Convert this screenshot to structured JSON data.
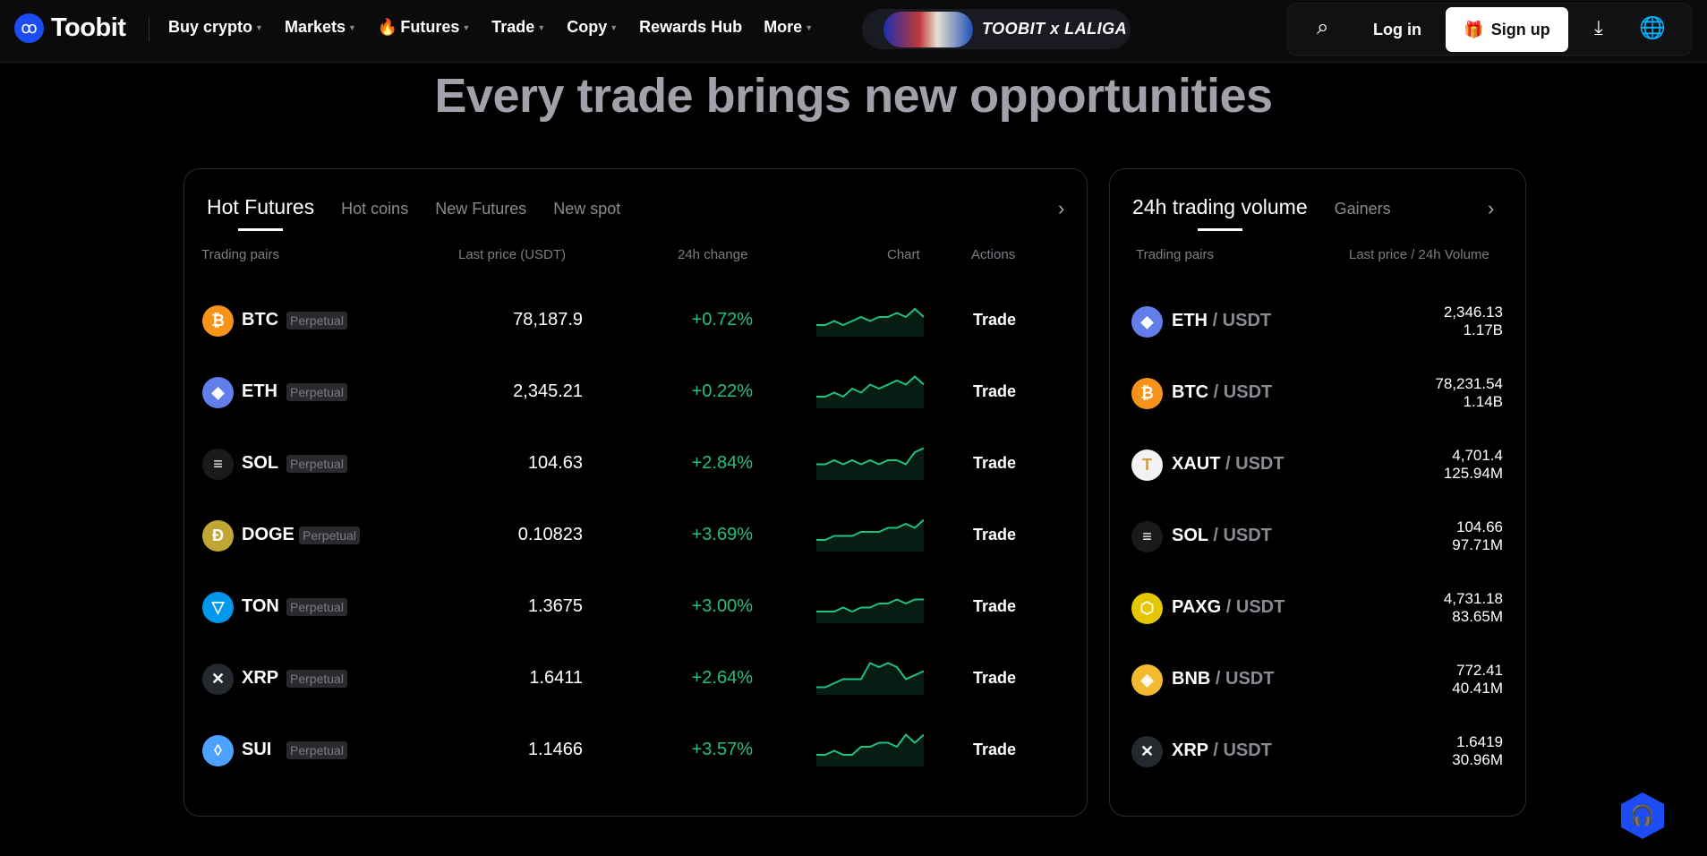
{
  "nav": {
    "brand": "Toobit",
    "menu": [
      {
        "label": "Buy crypto",
        "caret": true
      },
      {
        "label": "Markets",
        "caret": true
      },
      {
        "label": "Futures",
        "caret": true,
        "icon": "fire-icon"
      },
      {
        "label": "Trade",
        "caret": true
      },
      {
        "label": "Copy",
        "caret": true
      },
      {
        "label": "Rewards Hub",
        "caret": false
      },
      {
        "label": "More",
        "caret": true
      }
    ],
    "promo": "TOOBIT x LALIGA",
    "login": "Log in",
    "signup": "Sign up"
  },
  "headline": "Every trade brings new opportunities",
  "colors": {
    "accent": "#1d4cf5",
    "positive": "#20c080"
  },
  "hot": {
    "tabs": [
      "Hot Futures",
      "Hot coins",
      "New Futures",
      "New spot"
    ],
    "active_tab": "Hot Futures",
    "headers": {
      "pair": "Trading pairs",
      "price": "Last price  (USDT)",
      "change": "24h change",
      "chart": "Chart",
      "actions": "Actions"
    },
    "rows": [
      {
        "symbol": "BTC",
        "tag": "Perpetual",
        "price": "78,187.9",
        "change": "+0.72%",
        "action": "Trade",
        "color": "#f7931a",
        "glyph": "₿",
        "spark": [
          2,
          2,
          3,
          2,
          3,
          4,
          3,
          4,
          4,
          5,
          4,
          6,
          4
        ]
      },
      {
        "symbol": "ETH",
        "tag": "Perpetual",
        "price": "2,345.21",
        "change": "+0.22%",
        "action": "Trade",
        "color": "#627eea",
        "glyph": "◆",
        "spark": [
          2,
          2,
          3,
          2,
          4,
          3,
          5,
          4,
          5,
          6,
          5,
          7,
          5
        ]
      },
      {
        "symbol": "SOL",
        "tag": "Perpetual",
        "price": "104.63",
        "change": "+2.84%",
        "action": "Trade",
        "color": "#1a1a1a",
        "glyph": "≡",
        "spark": [
          3,
          3,
          4,
          3,
          4,
          3,
          4,
          3,
          4,
          4,
          3,
          6,
          7
        ]
      },
      {
        "symbol": "DOGE",
        "tag": "Perpetual",
        "price": "0.10823",
        "change": "+3.69%",
        "action": "Trade",
        "color": "#c2a633",
        "glyph": "Ð",
        "spark": [
          2,
          2,
          3,
          3,
          3,
          4,
          4,
          4,
          5,
          5,
          6,
          5,
          7
        ]
      },
      {
        "symbol": "TON",
        "tag": "Perpetual",
        "price": "1.3675",
        "change": "+3.00%",
        "action": "Trade",
        "color": "#0098ea",
        "glyph": "▽",
        "spark": [
          2,
          2,
          2,
          3,
          2,
          3,
          3,
          4,
          4,
          5,
          4,
          5,
          5
        ]
      },
      {
        "symbol": "XRP",
        "tag": "Perpetual",
        "price": "1.6411",
        "change": "+2.64%",
        "action": "Trade",
        "color": "#23292f",
        "glyph": "✕",
        "spark": [
          1,
          1,
          2,
          3,
          3,
          3,
          7,
          6,
          7,
          6,
          3,
          4,
          5
        ]
      },
      {
        "symbol": "SUI",
        "tag": "Perpetual",
        "price": "1.1466",
        "change": "+3.57%",
        "action": "Trade",
        "color": "#4da2ff",
        "glyph": "◊",
        "spark": [
          2,
          2,
          3,
          2,
          2,
          4,
          4,
          5,
          5,
          4,
          7,
          5,
          7
        ]
      }
    ]
  },
  "volume": {
    "tabs": [
      "24h trading volume",
      "Gainers"
    ],
    "active_tab": "24h trading volume",
    "headers": {
      "pair": "Trading pairs",
      "price": "Last price / 24h Volume"
    },
    "rows": [
      {
        "symbol": "ETH",
        "quote": "/ USDT",
        "price": "2,346.13",
        "volume": "1.17B",
        "color": "#627eea",
        "glyph": "◆"
      },
      {
        "symbol": "BTC",
        "quote": "/ USDT",
        "price": "78,231.54",
        "volume": "1.14B",
        "color": "#f7931a",
        "glyph": "₿"
      },
      {
        "symbol": "XAUT",
        "quote": "/ USDT",
        "price": "4,701.4",
        "volume": "125.94M",
        "color": "#f2f2f2",
        "glyph": "T"
      },
      {
        "symbol": "SOL",
        "quote": "/ USDT",
        "price": "104.66",
        "volume": "97.71M",
        "color": "#1a1a1a",
        "glyph": "≡"
      },
      {
        "symbol": "PAXG",
        "quote": "/ USDT",
        "price": "4,731.18",
        "volume": "83.65M",
        "color": "#e4c700",
        "glyph": "⬡"
      },
      {
        "symbol": "BNB",
        "quote": "/ USDT",
        "price": "772.41",
        "volume": "40.41M",
        "color": "#f3ba2f",
        "glyph": "◈"
      },
      {
        "symbol": "XRP",
        "quote": "/ USDT",
        "price": "1.6419",
        "volume": "30.96M",
        "color": "#23292f",
        "glyph": "✕"
      }
    ]
  }
}
